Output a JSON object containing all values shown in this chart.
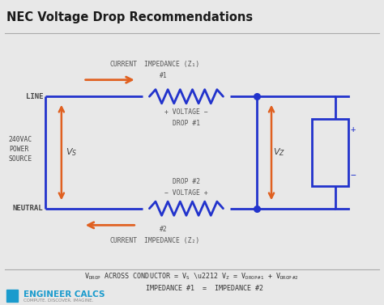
{
  "title": "NEC Voltage Drop Recommendations",
  "bg_color": "#e8e8e8",
  "title_color": "#1a1a1a",
  "circuit_color": "#2233cc",
  "arrow_color": "#e06020",
  "text_color": "#333333",
  "footer_text": "ENGINEER CALCS",
  "footer_sub": "COMPUTE. DISCOVER. IMAGINE."
}
